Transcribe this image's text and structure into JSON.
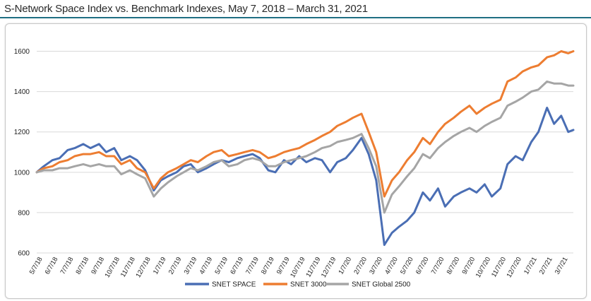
{
  "title": "S-Network Space Index vs. Benchmark Indexes, May 7, 2018 – March 31, 2021",
  "colors": {
    "accent_rule": "#1f6f83",
    "grid": "#d9d9d9"
  },
  "chart_data": {
    "type": "line",
    "title": "",
    "xlabel": "",
    "ylabel": "",
    "ylim": [
      600,
      1700
    ],
    "yticks": [
      600,
      800,
      1000,
      1200,
      1400,
      1600
    ],
    "grid": true,
    "legend_position": "bottom",
    "x_tick_labels": [
      "5/7/18",
      "6/7/18",
      "7/7/18",
      "8/7/18",
      "9/7/18",
      "10/7/18",
      "11/7/18",
      "12/7/18",
      "1/7/19",
      "2/7/19",
      "3/7/19",
      "4/7/19",
      "5/7/19",
      "6/7/19",
      "7/7/19",
      "8/7/19",
      "9/7/19",
      "10/7/19",
      "11/7/19",
      "12/7/19",
      "1/7/20",
      "2/7/20",
      "3/7/20",
      "4/7/20",
      "5/7/20",
      "6/7/20",
      "7/7/20",
      "8/7/20",
      "9/7/20",
      "10/7/20",
      "11/7/20",
      "12/7/20",
      "1/7/21",
      "2/7/21",
      "3/7/21"
    ],
    "x": [
      "2018-05-07",
      "2018-05-21",
      "2018-06-07",
      "2018-06-21",
      "2018-07-07",
      "2018-07-21",
      "2018-08-07",
      "2018-08-21",
      "2018-09-07",
      "2018-09-21",
      "2018-10-07",
      "2018-10-21",
      "2018-11-07",
      "2018-11-21",
      "2018-12-07",
      "2018-12-24",
      "2019-01-07",
      "2019-01-21",
      "2019-02-07",
      "2019-02-21",
      "2019-03-07",
      "2019-03-21",
      "2019-04-07",
      "2019-04-21",
      "2019-05-07",
      "2019-05-21",
      "2019-06-07",
      "2019-06-21",
      "2019-07-07",
      "2019-07-21",
      "2019-08-07",
      "2019-08-21",
      "2019-09-07",
      "2019-09-21",
      "2019-10-07",
      "2019-10-21",
      "2019-11-07",
      "2019-11-21",
      "2019-12-07",
      "2019-12-21",
      "2020-01-07",
      "2020-01-21",
      "2020-02-07",
      "2020-02-21",
      "2020-03-07",
      "2020-03-23",
      "2020-04-07",
      "2020-04-21",
      "2020-05-07",
      "2020-05-21",
      "2020-06-07",
      "2020-06-21",
      "2020-07-07",
      "2020-07-21",
      "2020-08-07",
      "2020-08-21",
      "2020-09-07",
      "2020-09-21",
      "2020-10-07",
      "2020-10-21",
      "2020-11-07",
      "2020-11-21",
      "2020-12-07",
      "2020-12-21",
      "2021-01-07",
      "2021-01-21",
      "2021-02-07",
      "2021-02-21",
      "2021-03-07",
      "2021-03-21",
      "2021-03-31"
    ],
    "series": [
      {
        "name": "SNET SPACE",
        "color": "#4a6eb4",
        "values": [
          1000,
          1030,
          1060,
          1070,
          1110,
          1120,
          1140,
          1120,
          1140,
          1100,
          1120,
          1060,
          1080,
          1060,
          1010,
          910,
          960,
          980,
          1000,
          1030,
          1040,
          1000,
          1020,
          1040,
          1060,
          1050,
          1070,
          1080,
          1090,
          1070,
          1010,
          1000,
          1060,
          1040,
          1080,
          1050,
          1070,
          1060,
          1000,
          1050,
          1070,
          1110,
          1170,
          1090,
          960,
          640,
          700,
          730,
          760,
          800,
          900,
          860,
          920,
          830,
          880,
          900,
          920,
          900,
          940,
          880,
          920,
          1040,
          1080,
          1060,
          1150,
          1200,
          1320,
          1240,
          1280,
          1200,
          1210
        ]
      },
      {
        "name": "SNET 3000",
        "color": "#ed7d31",
        "values": [
          1000,
          1020,
          1030,
          1050,
          1060,
          1080,
          1090,
          1090,
          1100,
          1080,
          1080,
          1040,
          1060,
          1020,
          1000,
          920,
          970,
          1000,
          1020,
          1040,
          1060,
          1050,
          1080,
          1100,
          1110,
          1080,
          1090,
          1100,
          1110,
          1100,
          1070,
          1080,
          1100,
          1110,
          1120,
          1140,
          1160,
          1180,
          1200,
          1230,
          1250,
          1270,
          1290,
          1200,
          1100,
          880,
          960,
          1000,
          1060,
          1100,
          1170,
          1140,
          1200,
          1240,
          1270,
          1300,
          1330,
          1290,
          1320,
          1340,
          1360,
          1450,
          1470,
          1500,
          1520,
          1530,
          1570,
          1580,
          1600,
          1590,
          1600
        ]
      },
      {
        "name": "SNET Global 2500",
        "color": "#a5a5a5",
        "values": [
          1000,
          1010,
          1010,
          1020,
          1020,
          1030,
          1040,
          1030,
          1040,
          1030,
          1030,
          990,
          1010,
          990,
          970,
          880,
          920,
          950,
          980,
          1000,
          1020,
          1010,
          1030,
          1050,
          1060,
          1030,
          1040,
          1060,
          1070,
          1060,
          1030,
          1030,
          1050,
          1060,
          1070,
          1080,
          1100,
          1120,
          1130,
          1150,
          1160,
          1170,
          1190,
          1120,
          1030,
          800,
          890,
          930,
          980,
          1020,
          1090,
          1070,
          1120,
          1150,
          1180,
          1200,
          1220,
          1200,
          1230,
          1250,
          1270,
          1330,
          1350,
          1370,
          1400,
          1410,
          1450,
          1440,
          1440,
          1430,
          1430
        ]
      }
    ]
  }
}
